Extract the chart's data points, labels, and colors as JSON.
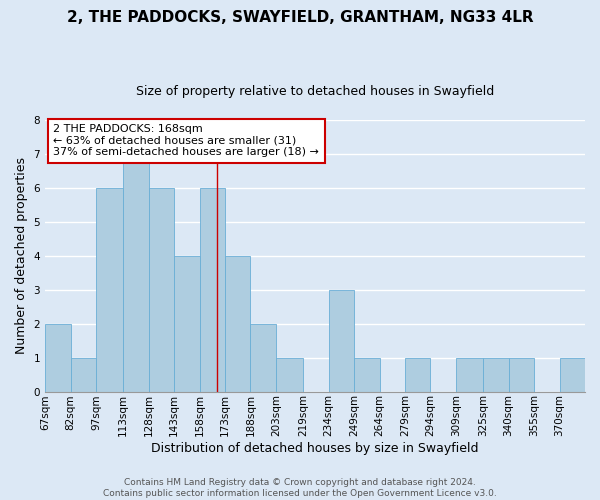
{
  "title": "2, THE PADDOCKS, SWAYFIELD, GRANTHAM, NG33 4LR",
  "subtitle": "Size of property relative to detached houses in Swayfield",
  "xlabel": "Distribution of detached houses by size in Swayfield",
  "ylabel": "Number of detached properties",
  "bin_labels": [
    "67sqm",
    "82sqm",
    "97sqm",
    "113sqm",
    "128sqm",
    "143sqm",
    "158sqm",
    "173sqm",
    "188sqm",
    "203sqm",
    "219sqm",
    "234sqm",
    "249sqm",
    "264sqm",
    "279sqm",
    "294sqm",
    "309sqm",
    "325sqm",
    "340sqm",
    "355sqm",
    "370sqm"
  ],
  "bar_values": [
    2,
    1,
    6,
    7,
    6,
    4,
    6,
    4,
    2,
    1,
    0,
    3,
    1,
    0,
    1,
    0,
    1,
    1,
    1,
    0,
    1
  ],
  "bar_color": "#aecde0",
  "bar_edgecolor": "#6aaed6",
  "ref_line_x": 168,
  "bin_edges": [
    67,
    82,
    97,
    113,
    128,
    143,
    158,
    173,
    188,
    203,
    219,
    234,
    249,
    264,
    279,
    294,
    309,
    325,
    340,
    355,
    370
  ],
  "annotation_title": "2 THE PADDOCKS: 168sqm",
  "annotation_line1": "← 63% of detached houses are smaller (31)",
  "annotation_line2": "37% of semi-detached houses are larger (18) →",
  "annotation_box_color": "#ffffff",
  "annotation_border_color": "#cc0000",
  "ref_line_color": "#cc0000",
  "ylim": [
    0,
    8
  ],
  "yticks": [
    0,
    1,
    2,
    3,
    4,
    5,
    6,
    7,
    8
  ],
  "fig_background": "#dce8f5",
  "plot_background": "#dce8f5",
  "footer_line1": "Contains HM Land Registry data © Crown copyright and database right 2024.",
  "footer_line2": "Contains public sector information licensed under the Open Government Licence v3.0.",
  "title_fontsize": 11,
  "subtitle_fontsize": 9,
  "xlabel_fontsize": 9,
  "ylabel_fontsize": 9,
  "tick_fontsize": 7.5,
  "footer_fontsize": 6.5,
  "annotation_fontsize": 8
}
